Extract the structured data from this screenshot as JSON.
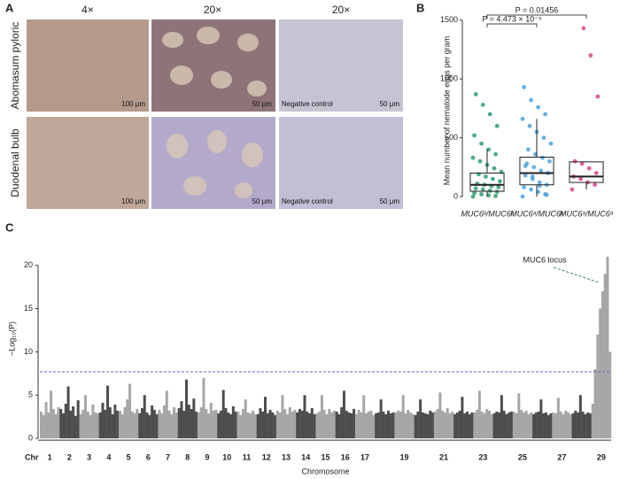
{
  "panel_a": {
    "label": "A",
    "columns": [
      "4×",
      "20×",
      "20×"
    ],
    "rows": [
      "Abomasum pyloric",
      "Duodenal bulb"
    ],
    "scale_bars": [
      [
        "100 μm",
        "50 μm",
        "50 μm"
      ],
      [
        "100 μm",
        "50 μm",
        "50 μm"
      ]
    ],
    "negative_control": [
      "Negative control",
      "Negative control"
    ]
  },
  "chart_data": [
    {
      "type": "box",
      "label": "B",
      "ylabel": "Mean number of nematode eggs per gram",
      "categories": [
        "MUC6ᵇ/MUC6ᵇ",
        "MUC6ᵃ/MUC6ᵇ",
        "MUC6ᵃ/MUC6ᵃ"
      ],
      "colors": [
        "#2e9e6e",
        "#4da3dd",
        "#d6468a"
      ],
      "boxes": [
        {
          "min": 0,
          "q1": 45,
          "median": 100,
          "q3": 200,
          "max": 400
        },
        {
          "min": 0,
          "q1": 100,
          "median": 200,
          "q3": 335,
          "max": 660
        },
        {
          "min": 60,
          "q1": 120,
          "median": 170,
          "q3": 295,
          "max": 300
        }
      ],
      "points": [
        [
          0,
          5,
          10,
          20,
          30,
          40,
          50,
          60,
          70,
          80,
          90,
          100,
          110,
          130,
          150,
          170,
          190,
          210,
          240,
          270,
          300,
          330,
          360,
          400,
          450,
          520,
          600,
          700,
          780,
          870
        ],
        [
          0,
          20,
          40,
          60,
          80,
          100,
          120,
          150,
          180,
          200,
          220,
          250,
          280,
          300,
          330,
          360,
          400,
          450,
          500,
          550,
          600,
          660,
          700,
          760,
          820,
          930,
          15,
          90,
          170,
          260
        ],
        [
          60,
          100,
          120,
          150,
          170,
          200,
          240,
          280,
          300,
          850,
          1200,
          1430
        ]
      ],
      "annotations": [
        "P = 0.01456",
        "P = 4.473 × 10⁻⁵"
      ],
      "ylim": [
        -60,
        1520
      ],
      "yticks": [
        0,
        500,
        1000,
        1500
      ]
    },
    {
      "type": "manhattan",
      "label": "C",
      "ylabel": "−Log₁₀(P)",
      "xlabel": "Chromosome",
      "chr_label": "Chr",
      "categories": [
        "1",
        "2",
        "3",
        "4",
        "5",
        "6",
        "7",
        "8",
        "9",
        "10",
        "11",
        "12",
        "13",
        "14",
        "15",
        "16",
        "17",
        null,
        "19",
        null,
        "21",
        null,
        "23",
        null,
        "25",
        null,
        "27",
        null,
        "29"
      ],
      "colors": [
        "#a6a6a6",
        "#4d4d4d"
      ],
      "values": [
        [
          3.1,
          2.7,
          4.2,
          3.0,
          5.5,
          3.4,
          2.8,
          3.6
        ],
        [
          3.4,
          2.9,
          4.0,
          6.0,
          3.2,
          3.7,
          2.6,
          4.4
        ],
        [
          2.8,
          3.3,
          5.0,
          3.1,
          2.7,
          3.9,
          3.0,
          2.9
        ],
        [
          3.0,
          4.1,
          3.3,
          6.1,
          3.6,
          2.8,
          3.9,
          3.2
        ],
        [
          3.2,
          2.8,
          3.6,
          4.5,
          6.3,
          3.1,
          2.9,
          3.4
        ],
        [
          2.9,
          3.5,
          5.0,
          3.0,
          2.7,
          3.8,
          3.3,
          2.8
        ],
        [
          3.3,
          2.9,
          3.8,
          5.5,
          3.2,
          2.8,
          3.6,
          3.0
        ],
        [
          3.5,
          4.3,
          3.2,
          6.8,
          3.9,
          3.4,
          4.6,
          3.1
        ],
        [
          3.0,
          3.6,
          7.0,
          3.4,
          2.9,
          4.1,
          3.2,
          3.3
        ],
        [
          2.9,
          3.2,
          5.6,
          3.5,
          3.0,
          2.8,
          3.7,
          3.1
        ],
        [
          3.1,
          2.7,
          3.4,
          4.5,
          3.0,
          2.9,
          3.2,
          2.8
        ],
        [
          2.8,
          3.5,
          3.1,
          4.8,
          2.9,
          3.3,
          3.0,
          2.7
        ],
        [
          3.2,
          3.0,
          5.0,
          3.4,
          2.8,
          3.6,
          3.1,
          3.3
        ],
        [
          3.0,
          3.4,
          3.2,
          5.0,
          3.1,
          2.9,
          3.5,
          2.8
        ],
        [
          2.9,
          3.1,
          5.0,
          3.3,
          2.8,
          3.4,
          3.0,
          3.2
        ],
        [
          3.1,
          2.8,
          3.6,
          5.5,
          3.2,
          3.0,
          2.9,
          3.4
        ],
        [
          2.8,
          3.3,
          3.0,
          5.0,
          2.9,
          3.1,
          3.2,
          2.7
        ],
        [
          2.9,
          3.0,
          4.5,
          3.1,
          2.8,
          3.2,
          2.9,
          3.0
        ],
        [
          3.0,
          3.2,
          3.1,
          5.0,
          2.9,
          3.3,
          3.0,
          2.8
        ],
        [
          2.7,
          3.1,
          4.5,
          3.0,
          2.9,
          2.8,
          3.2,
          3.0
        ],
        [
          3.1,
          3.4,
          5.3,
          3.2,
          3.0,
          3.5,
          2.9,
          3.1
        ],
        [
          2.8,
          3.0,
          3.2,
          4.8,
          2.9,
          3.1,
          2.8,
          3.0
        ],
        [
          3.0,
          3.3,
          5.5,
          3.1,
          2.9,
          3.4,
          3.2,
          2.8
        ],
        [
          2.9,
          3.1,
          3.0,
          5.0,
          3.2,
          2.8,
          3.0,
          3.1
        ],
        [
          3.1,
          2.9,
          5.2,
          3.3,
          3.0,
          3.2,
          2.8,
          3.0
        ],
        [
          2.8,
          3.0,
          3.1,
          4.5,
          2.9,
          3.0,
          2.7,
          2.9
        ],
        [
          3.0,
          2.9,
          4.7,
          3.1,
          2.8,
          3.2,
          3.0,
          2.8
        ],
        [
          2.9,
          3.2,
          3.0,
          5.0,
          3.1,
          2.8,
          3.0,
          2.9
        ],
        [
          4.0,
          8.0,
          12.0,
          15.0,
          17.0,
          19.0,
          21.0,
          10.0
        ]
      ],
      "threshold": 7.7,
      "annotation": "MUC6 locus",
      "annotation_color": "#2e8b57",
      "ylim": [
        -0.5,
        21.5
      ],
      "yticks": [
        0,
        5,
        10,
        15,
        20
      ]
    }
  ]
}
